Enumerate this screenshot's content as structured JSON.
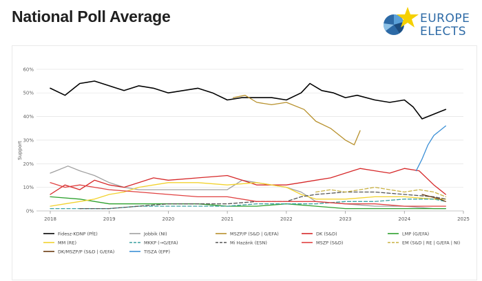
{
  "header": {
    "title": "National Poll Average"
  },
  "logo": {
    "line1": "EUROPE",
    "line2": "ELECTS",
    "colors": {
      "blue": "#2d6aa6",
      "yellow": "#f5d000"
    }
  },
  "chart_data": {
    "type": "line",
    "title": "",
    "xlabel": "",
    "ylabel": "Support",
    "xlim": [
      2018.0,
      2025.0
    ],
    "ylim": [
      0,
      62
    ],
    "yticks": [
      "0%",
      "10%",
      "20%",
      "30%",
      "40%",
      "50%",
      "60%"
    ],
    "xticks": [
      "2018",
      "2019",
      "2020",
      "2021",
      "2022",
      "2023",
      "2024",
      "2025"
    ],
    "grid": true,
    "legend_position": "bottom",
    "series": [
      {
        "name": "Fidesz-KDNP (PfE)",
        "color": "#000000",
        "dash": "solid",
        "x": [
          2018.0,
          2018.25,
          2018.5,
          2018.75,
          2019.0,
          2019.25,
          2019.5,
          2019.75,
          2020.0,
          2020.25,
          2020.5,
          2020.75,
          2021.0,
          2021.25,
          2021.5,
          2021.75,
          2022.0,
          2022.25,
          2022.4,
          2022.6,
          2022.8,
          2023.0,
          2023.2,
          2023.5,
          2023.75,
          2024.0,
          2024.15,
          2024.3,
          2024.5,
          2024.7
        ],
        "y": [
          52,
          49,
          54,
          55,
          53,
          51,
          53,
          52,
          50,
          51,
          52,
          50,
          47,
          48,
          48,
          48,
          47,
          50,
          54,
          51,
          50,
          48,
          49,
          47,
          46,
          47,
          44,
          39,
          41,
          43
        ]
      },
      {
        "name": "Jobbik (NI)",
        "color": "#a0a0a0",
        "dash": "solid",
        "x": [
          2018.0,
          2018.1,
          2018.3,
          2018.5,
          2018.75,
          2019.0,
          2019.25,
          2019.5,
          2019.75,
          2020.0,
          2020.5,
          2021.0,
          2021.25,
          2021.5,
          2021.75,
          2022.0,
          2022.25,
          2022.5,
          2023.0,
          2023.5,
          2024.0,
          2024.5,
          2024.7
        ],
        "y": [
          16,
          17,
          19,
          17,
          15,
          12,
          10,
          9,
          9,
          9,
          9,
          9,
          13,
          12,
          11,
          10,
          8,
          4,
          3,
          2,
          2,
          1,
          1
        ]
      },
      {
        "name": "MSZP/P (S&D | G/EFA)",
        "color": "#b7902b",
        "dash": "solid",
        "x": [
          2021.1,
          2021.3,
          2021.5,
          2021.75,
          2022.0,
          2022.3,
          2022.5,
          2022.75,
          2023.0,
          2023.15,
          2023.25
        ],
        "y": [
          48,
          49,
          46,
          45,
          46,
          43,
          38,
          35,
          30,
          28,
          34
        ]
      },
      {
        "name": "DK (S&D)",
        "color": "#d62728",
        "dash": "solid",
        "x": [
          2018.0,
          2018.25,
          2018.5,
          2018.75,
          2019.0,
          2019.25,
          2019.5,
          2019.75,
          2020.0,
          2020.5,
          2021.0,
          2021.25,
          2021.5,
          2022.0,
          2022.25,
          2022.5,
          2022.75,
          2023.0,
          2023.25,
          2023.5,
          2023.75,
          2024.0,
          2024.25,
          2024.5,
          2024.7
        ],
        "y": [
          7,
          11,
          9,
          13,
          11,
          10,
          12,
          14,
          13,
          14,
          15,
          13,
          11,
          11,
          12,
          13,
          14,
          16,
          18,
          17,
          16,
          18,
          17,
          11,
          7
        ]
      },
      {
        "name": "LMP (G/EFA)",
        "color": "#2ca02c",
        "dash": "solid",
        "x": [
          2018.0,
          2018.5,
          2019.0,
          2019.5,
          2020.0,
          2020.5,
          2021.0,
          2021.5,
          2022.0,
          2022.5,
          2023.0,
          2023.5,
          2024.0,
          2024.5,
          2024.7
        ],
        "y": [
          6,
          5,
          3,
          3,
          3,
          3,
          2,
          2,
          3,
          2,
          1,
          1,
          1,
          1,
          1
        ]
      },
      {
        "name": "MM (RE)",
        "color": "#f2d22e",
        "dash": "solid",
        "x": [
          2018.0,
          2018.25,
          2018.5,
          2018.75,
          2019.0,
          2019.25,
          2019.5,
          2019.75,
          2020.0,
          2020.5,
          2021.0,
          2021.5,
          2022.0,
          2022.25,
          2022.5,
          2023.0,
          2023.5,
          2024.0,
          2024.5,
          2024.7
        ],
        "y": [
          2,
          3,
          4,
          5,
          7,
          8,
          10,
          11,
          12,
          12,
          11,
          12,
          10,
          7,
          5,
          5,
          6,
          6,
          5,
          5
        ]
      },
      {
        "name": "MKKP (→G/EFA)",
        "color": "#3aa0a0",
        "dash": "dash",
        "x": [
          2018.0,
          2018.5,
          2019.0,
          2019.5,
          2020.0,
          2020.5,
          2021.0,
          2021.5,
          2022.0,
          2022.5,
          2023.0,
          2023.5,
          2024.0,
          2024.5,
          2024.7
        ],
        "y": [
          1,
          1,
          1,
          2,
          2,
          2,
          2,
          3,
          3,
          3,
          4,
          4,
          5,
          5,
          4
        ]
      },
      {
        "name": "Mi Hazánk (ESN)",
        "color": "#555555",
        "dash": "dash",
        "x": [
          2018.5,
          2019.0,
          2019.5,
          2020.0,
          2020.5,
          2021.0,
          2021.5,
          2022.0,
          2022.25,
          2022.5,
          2023.0,
          2023.5,
          2024.0,
          2024.5,
          2024.7
        ],
        "y": [
          1,
          1,
          2,
          3,
          3,
          3,
          4,
          4,
          6,
          7,
          8,
          8,
          7,
          6,
          5
        ]
      },
      {
        "name": "MSZP (S&D)",
        "color": "#e04040",
        "dash": "solid",
        "x": [
          2018.0,
          2018.25,
          2018.5,
          2018.75,
          2019.0,
          2019.5,
          2020.0,
          2020.5,
          2021.0,
          2021.5,
          2022.0,
          2022.5,
          2023.0,
          2023.5,
          2024.0,
          2024.5,
          2024.7
        ],
        "y": [
          12,
          10,
          11,
          10,
          9,
          8,
          7,
          6,
          6,
          4,
          4,
          4,
          3,
          3,
          2,
          2,
          2
        ]
      },
      {
        "name": "EM (S&D | RE | G/EFA | NI)",
        "color": "#c8b040",
        "dash": "dash",
        "x": [
          2022.5,
          2022.75,
          2023.0,
          2023.25,
          2023.5,
          2023.75,
          2024.0,
          2024.25,
          2024.5,
          2024.7
        ],
        "y": [
          8,
          9,
          8,
          9,
          10,
          9,
          8,
          9,
          8,
          6
        ]
      },
      {
        "name": "DK/MSZP/P (S&D | G/EFA)",
        "color": "#6b3a10",
        "dash": "solid",
        "x": [
          2024.3,
          2024.45,
          2024.6,
          2024.7
        ],
        "y": [
          7,
          6,
          5,
          4
        ]
      },
      {
        "name": "TISZA (EPP)",
        "color": "#3a8fd6",
        "dash": "solid",
        "x": [
          2024.2,
          2024.3,
          2024.4,
          2024.5,
          2024.6,
          2024.7
        ],
        "y": [
          17,
          22,
          28,
          32,
          34,
          36
        ]
      }
    ]
  }
}
